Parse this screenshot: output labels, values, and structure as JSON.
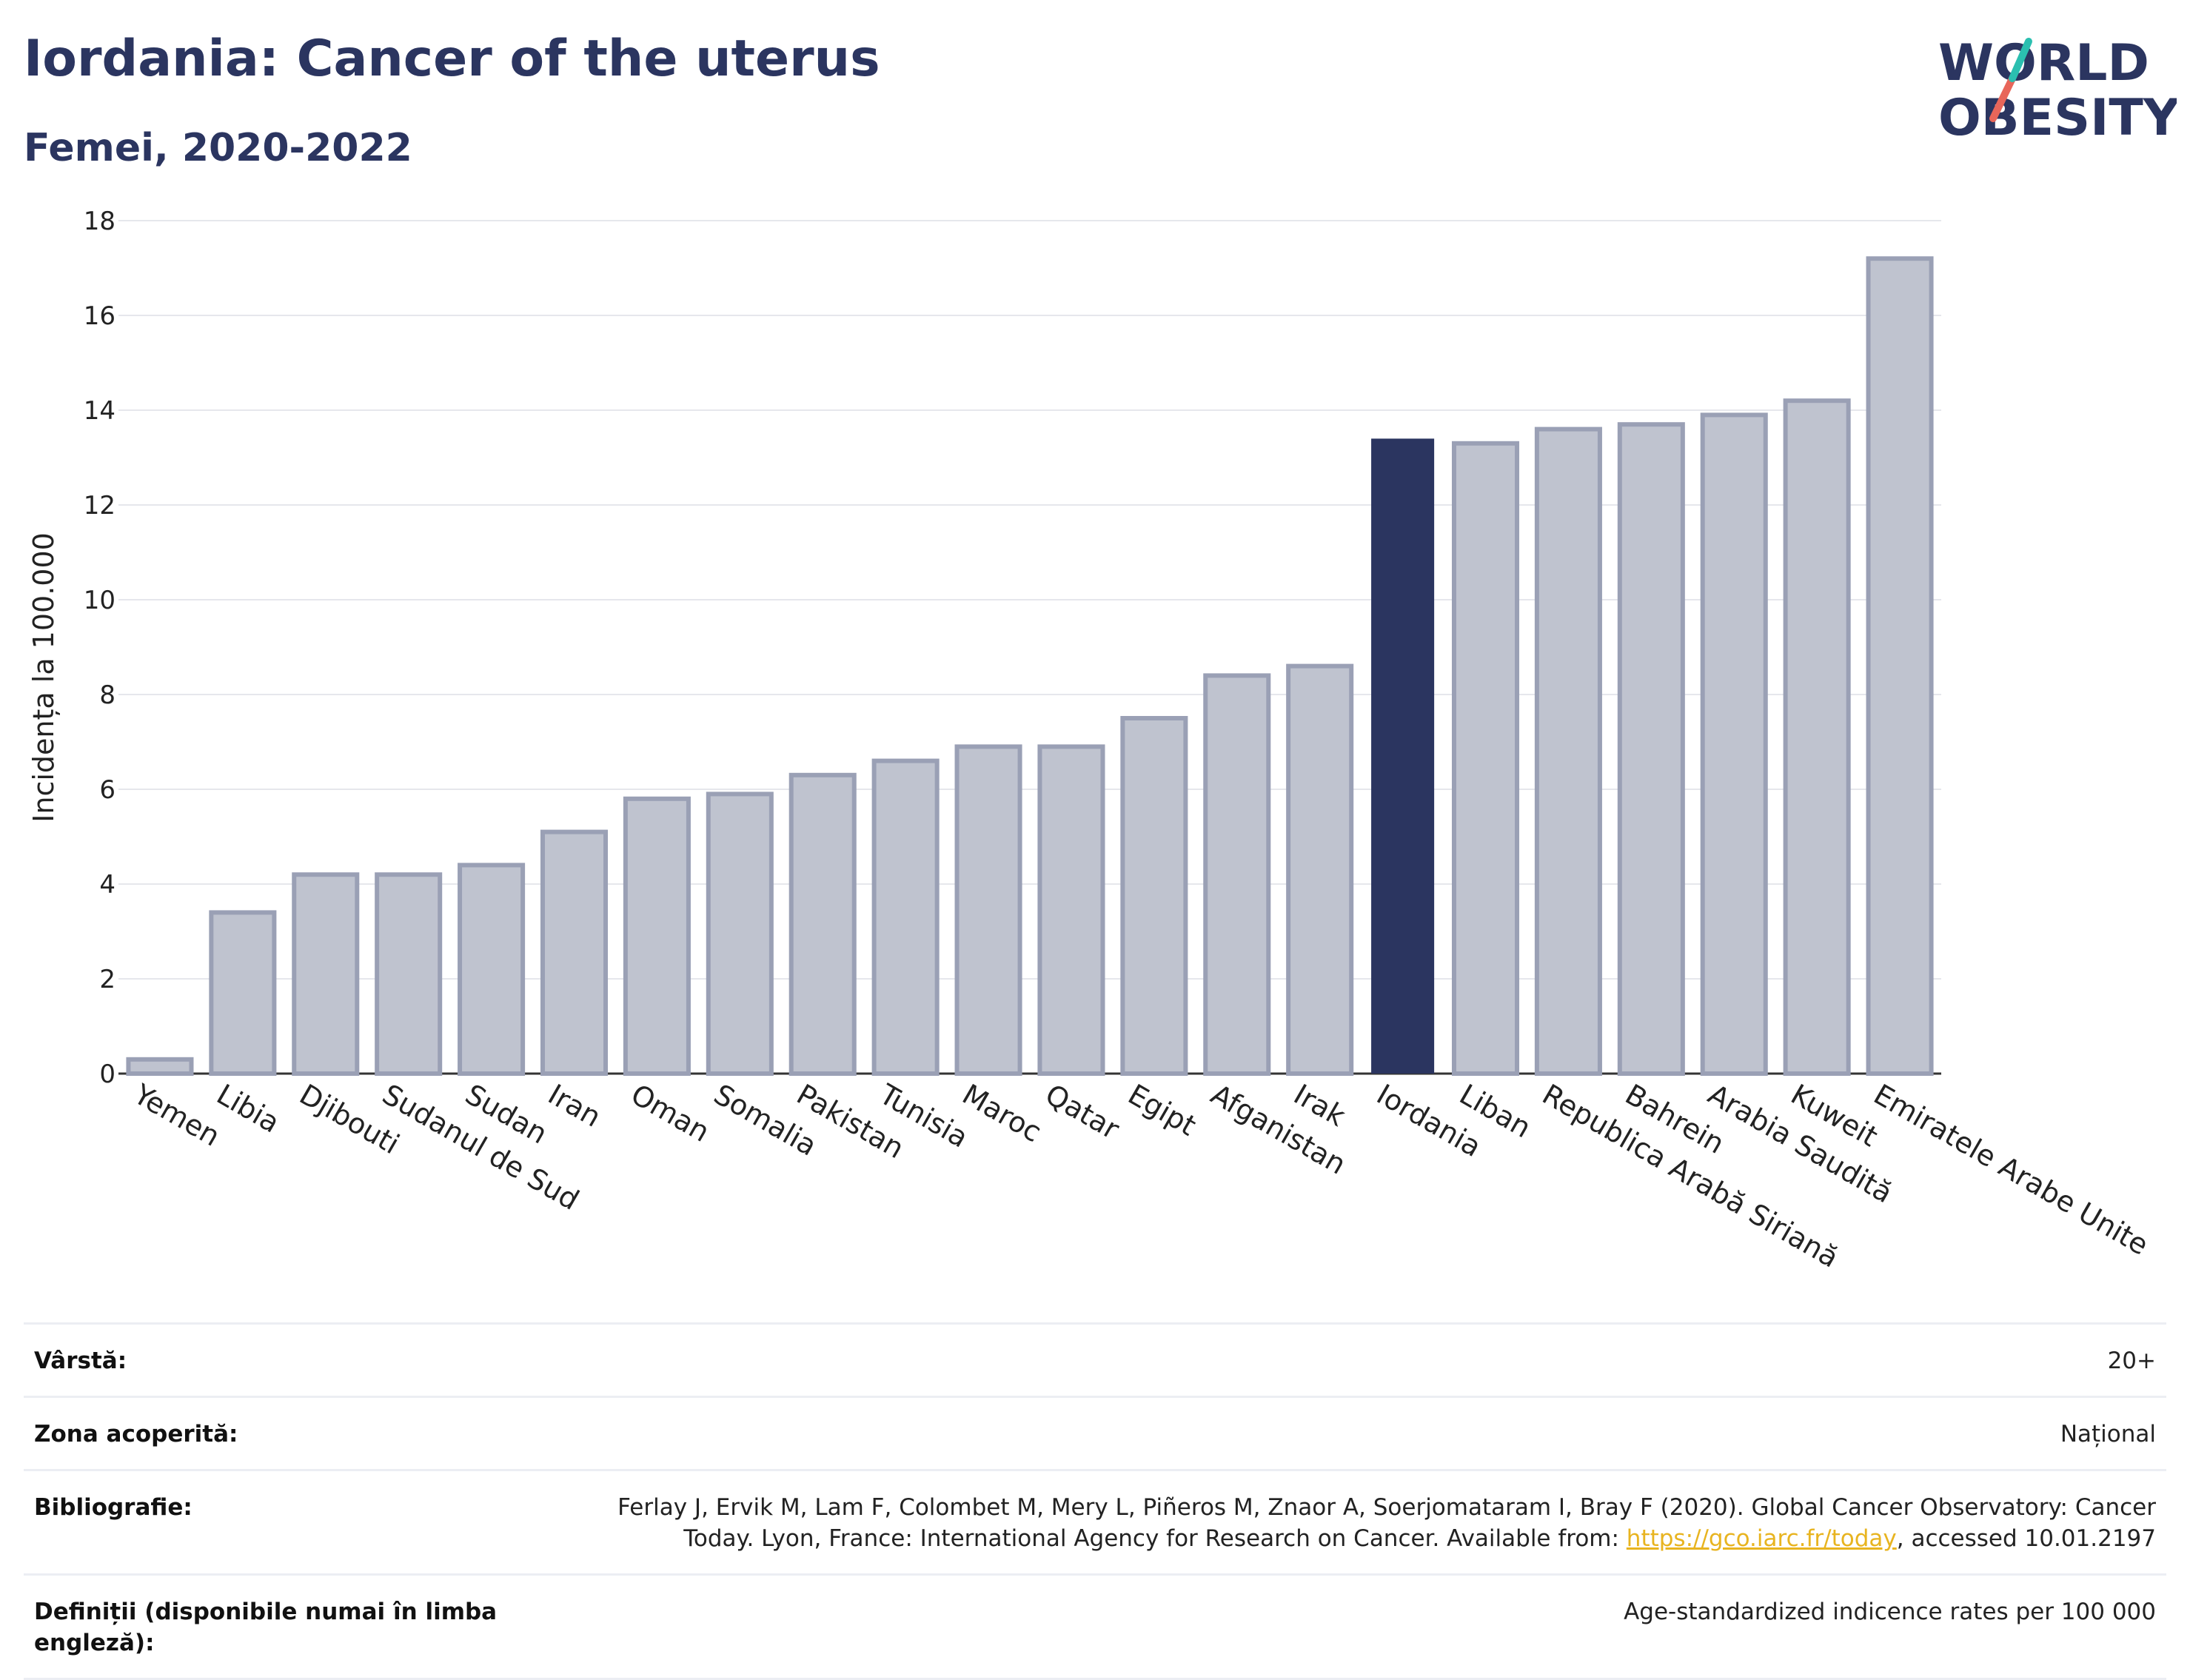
{
  "header": {
    "title": "Iordania: Cancer of the uterus",
    "subtitle": "Femei, 2020-2022"
  },
  "logo": {
    "line1": "WORLD",
    "line2": "OBESITY",
    "colors": {
      "text": "#2b3560",
      "slash_top": "#2bbfb0",
      "slash_bottom": "#e8665a"
    }
  },
  "chart_data": {
    "type": "bar",
    "ylabel": "Incidența la 100.000",
    "ylim": [
      0,
      18
    ],
    "yticks": [
      0,
      2,
      4,
      6,
      8,
      10,
      12,
      14,
      16,
      18
    ],
    "grid": true,
    "highlight": "Iordania",
    "colors": {
      "bar": "#bfc3cf",
      "bar_edge": "#9aa0b5",
      "highlight": "#2b3560"
    },
    "categories": [
      "Yemen",
      "Libia",
      "Djibouti",
      "Sudanul de Sud",
      "Sudan",
      "Iran",
      "Oman",
      "Somalia",
      "Pakistan",
      "Tunisia",
      "Maroc",
      "Qatar",
      "Egipt",
      "Afganistan",
      "Irak",
      "Iordania",
      "Liban",
      "Republica Arabă Siriană",
      "Bahrein",
      "Arabia Saudită",
      "Kuweit",
      "Emiratele Arabe Unite"
    ],
    "values": [
      0.3,
      3.4,
      4.2,
      4.2,
      4.4,
      5.1,
      5.8,
      5.9,
      6.3,
      6.6,
      6.9,
      6.9,
      7.5,
      8.4,
      8.6,
      13.4,
      13.3,
      13.6,
      13.7,
      13.9,
      14.2,
      17.2
    ]
  },
  "info": {
    "rows": [
      {
        "key": "Vârstă:",
        "value": "20+"
      },
      {
        "key": "Zona acoperită:",
        "value": "Național"
      },
      {
        "key": "Bibliografie:",
        "value_line1": "Ferlay J, Ervik M, Lam F, Colombet M, Mery L, Piñeros M, Znaor A, Soerjomataram I, Bray F (2020). Global Cancer Observatory: Cancer",
        "value_line2_pre": "Today. Lyon, France: International Agency for Research on Cancer. Available from: ",
        "link": "https://gco.iarc.fr/today",
        "value_line2_post": ", accessed 10.01.2197"
      },
      {
        "key": "Definiții (disponibile numai în limba engleză):",
        "value": "Age-standardized indicence rates per 100 000"
      }
    ]
  }
}
